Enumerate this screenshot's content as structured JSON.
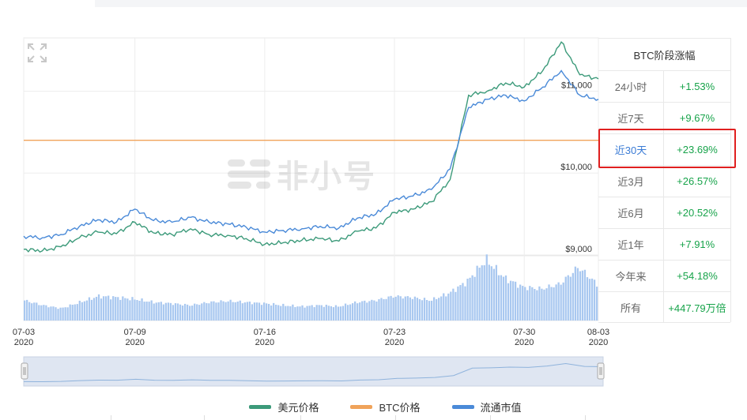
{
  "chart_data": {
    "type": "line",
    "title": "",
    "y_ticks": [
      "$9,000",
      "$10,000",
      "$11,000"
    ],
    "ylim": [
      9000,
      11650
    ],
    "x_tick_labels": [
      {
        "date": "07-03",
        "year": "2020"
      },
      {
        "date": "07-09",
        "year": "2020"
      },
      {
        "date": "07-16",
        "year": "2020"
      },
      {
        "date": "07-23",
        "year": "2020"
      },
      {
        "date": "07-30",
        "year": "2020"
      },
      {
        "date": "08-03",
        "year": "2020"
      }
    ],
    "xlim": [
      "2020-07-03",
      "2020-08-03"
    ],
    "series": [
      {
        "name": "美元价格",
        "color": "#3c9a7a",
        "x": [
          "2020-07-03",
          "2020-07-04",
          "2020-07-05",
          "2020-07-06",
          "2020-07-07",
          "2020-07-08",
          "2020-07-09",
          "2020-07-10",
          "2020-07-11",
          "2020-07-12",
          "2020-07-13",
          "2020-07-14",
          "2020-07-15",
          "2020-07-16",
          "2020-07-17",
          "2020-07-18",
          "2020-07-19",
          "2020-07-20",
          "2020-07-21",
          "2020-07-22",
          "2020-07-23",
          "2020-07-24",
          "2020-07-25",
          "2020-07-26",
          "2020-07-27",
          "2020-07-28",
          "2020-07-29",
          "2020-07-30",
          "2020-07-31",
          "2020-08-01",
          "2020-08-02",
          "2020-08-03"
        ],
        "values": [
          9070,
          9050,
          9100,
          9210,
          9280,
          9260,
          9400,
          9270,
          9250,
          9320,
          9250,
          9240,
          9200,
          9130,
          9150,
          9180,
          9200,
          9170,
          9290,
          9330,
          9520,
          9560,
          9650,
          9920,
          10950,
          11000,
          11100,
          11050,
          11250,
          11600,
          11200,
          11150
        ]
      },
      {
        "name": "BTC价格",
        "color": "#f0a35a",
        "x": [
          "2020-07-03",
          "2020-08-03"
        ],
        "values": [
          10400,
          10400
        ]
      },
      {
        "name": "流通市值",
        "color": "#4a8ad8",
        "x": [
          "2020-07-03",
          "2020-07-04",
          "2020-07-05",
          "2020-07-06",
          "2020-07-07",
          "2020-07-08",
          "2020-07-09",
          "2020-07-10",
          "2020-07-11",
          "2020-07-12",
          "2020-07-13",
          "2020-07-14",
          "2020-07-15",
          "2020-07-16",
          "2020-07-17",
          "2020-07-18",
          "2020-07-19",
          "2020-07-20",
          "2020-07-21",
          "2020-07-22",
          "2020-07-23",
          "2020-07-24",
          "2020-07-25",
          "2020-07-26",
          "2020-07-27",
          "2020-07-28",
          "2020-07-29",
          "2020-07-30",
          "2020-07-31",
          "2020-08-01",
          "2020-08-02",
          "2020-08-03"
        ],
        "values": [
          9230,
          9210,
          9250,
          9350,
          9430,
          9400,
          9560,
          9420,
          9400,
          9460,
          9400,
          9380,
          9340,
          9280,
          9300,
          9320,
          9350,
          9330,
          9450,
          9500,
          9680,
          9720,
          9800,
          10050,
          10800,
          10900,
          10950,
          10880,
          11050,
          11250,
          10950,
          10900
        ]
      }
    ],
    "volume": {
      "x": [
        "2020-07-03",
        "2020-07-04",
        "2020-07-05",
        "2020-07-06",
        "2020-07-07",
        "2020-07-08",
        "2020-07-09",
        "2020-07-10",
        "2020-07-11",
        "2020-07-12",
        "2020-07-13",
        "2020-07-14",
        "2020-07-15",
        "2020-07-16",
        "2020-07-17",
        "2020-07-18",
        "2020-07-19",
        "2020-07-20",
        "2020-07-21",
        "2020-07-22",
        "2020-07-23",
        "2020-07-24",
        "2020-07-25",
        "2020-07-26",
        "2020-07-27",
        "2020-07-28",
        "2020-07-29",
        "2020-07-30",
        "2020-07-31",
        "2020-08-01",
        "2020-08-02",
        "2020-08-03"
      ],
      "values": [
        0.33,
        0.25,
        0.2,
        0.3,
        0.4,
        0.38,
        0.35,
        0.3,
        0.28,
        0.25,
        0.3,
        0.32,
        0.3,
        0.28,
        0.25,
        0.23,
        0.25,
        0.23,
        0.3,
        0.33,
        0.4,
        0.38,
        0.33,
        0.45,
        0.65,
        1.0,
        0.7,
        0.55,
        0.52,
        0.6,
        0.88,
        0.6
      ],
      "color": "#a9c8f0"
    },
    "legend_placement": "bottom-center",
    "grid": true,
    "navigator": true
  },
  "stats_panel": {
    "title": "BTC阶段涨幅",
    "rows": [
      {
        "label": "24小时",
        "value": "+1.53%"
      },
      {
        "label": "近7天",
        "value": "+9.67%"
      },
      {
        "label": "近30天",
        "value": "+23.69%"
      },
      {
        "label": "近3月",
        "value": "+26.57%"
      },
      {
        "label": "近6月",
        "value": "+20.52%"
      },
      {
        "label": "近1年",
        "value": "+7.91%"
      },
      {
        "label": "今年来",
        "value": "+54.18%"
      },
      {
        "label": "所有",
        "value": "+447.79万倍"
      }
    ],
    "highlighted_row": "近30天",
    "highlight_color": "#e02020"
  },
  "watermark": {
    "text": "非小号",
    "icon": "feixiaohao-logo-icon"
  },
  "legend": {
    "items": [
      {
        "label": "美元价格",
        "color": "#3c9a7a"
      },
      {
        "label": "BTC价格",
        "color": "#f0a35a"
      },
      {
        "label": "流通市值",
        "color": "#4a8ad8"
      }
    ]
  },
  "toolbar": {
    "expand_icon": "fullscreen-expand-icon"
  }
}
